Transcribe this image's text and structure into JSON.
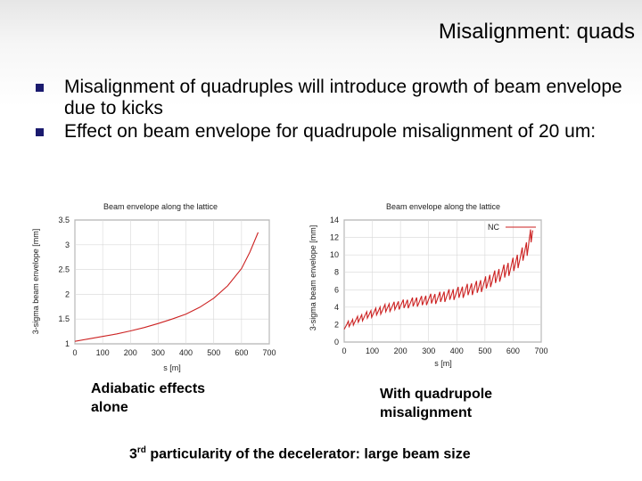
{
  "slide": {
    "title": "Misalignment: quads",
    "bullets": [
      {
        "text": "Misalignment of quadruples will introduce growth of beam envelope due to kicks"
      },
      {
        "text": "Effect on beam envelope for quadrupole misalignment of 20 um:"
      }
    ],
    "captions": [
      {
        "text": "Adiabatic effects alone"
      },
      {
        "text": "With quadrupole misalignment"
      }
    ],
    "footer": {
      "ordinal": "3",
      "suffix": "rd",
      "text": " particularity of the decelerator: large beam size"
    }
  },
  "chart_data": [
    {
      "type": "line",
      "title": "Beam envelope along the lattice",
      "xlabel": "s [m]",
      "ylabel": "3-sigma beam envelope [mm]",
      "xlim": [
        0,
        700
      ],
      "ylim": [
        1,
        3.5
      ],
      "xticks": [
        "0",
        "100",
        "200",
        "300",
        "400",
        "500",
        "600",
        "700"
      ],
      "yticks": [
        "1",
        "1.5",
        "2",
        "2.5",
        "3",
        "3.5"
      ],
      "grid": true,
      "line_color": "#cc2222",
      "series": [
        {
          "x": [
            0,
            50,
            100,
            150,
            200,
            250,
            300,
            350,
            400,
            450,
            500,
            550,
            600,
            630,
            660
          ],
          "y": [
            1.05,
            1.1,
            1.15,
            1.2,
            1.26,
            1.33,
            1.41,
            1.5,
            1.6,
            1.74,
            1.92,
            2.17,
            2.52,
            2.85,
            3.25
          ]
        }
      ]
    },
    {
      "type": "line",
      "title": "Beam envelope along the lattice",
      "xlabel": "s [m]",
      "ylabel": "3-sigma beam envelope [mm]",
      "xlim": [
        0,
        700
      ],
      "ylim": [
        0,
        14
      ],
      "xticks": [
        "0",
        "100",
        "200",
        "300",
        "400",
        "500",
        "600",
        "700"
      ],
      "yticks": [
        "0",
        "2",
        "4",
        "6",
        "8",
        "10",
        "12",
        "14"
      ],
      "grid": true,
      "legend": "top-right",
      "line_color": "#cc2222",
      "series": [
        {
          "name": "NC",
          "x": [
            0,
            25,
            50,
            75,
            100,
            125,
            150,
            175,
            200,
            225,
            250,
            275,
            300,
            325,
            350,
            375,
            400,
            425,
            450,
            475,
            500,
            525,
            550,
            575,
            600,
            625,
            650,
            670
          ],
          "y": [
            1.8,
            2.2,
            2.6,
            3.0,
            3.3,
            3.6,
            3.9,
            4.1,
            4.3,
            4.4,
            4.6,
            4.7,
            4.9,
            5.0,
            5.2,
            5.4,
            5.6,
            5.8,
            6.1,
            6.3,
            6.7,
            7.2,
            7.7,
            8.2,
            8.8,
            9.6,
            10.8,
            12.8
          ]
        }
      ]
    }
  ]
}
